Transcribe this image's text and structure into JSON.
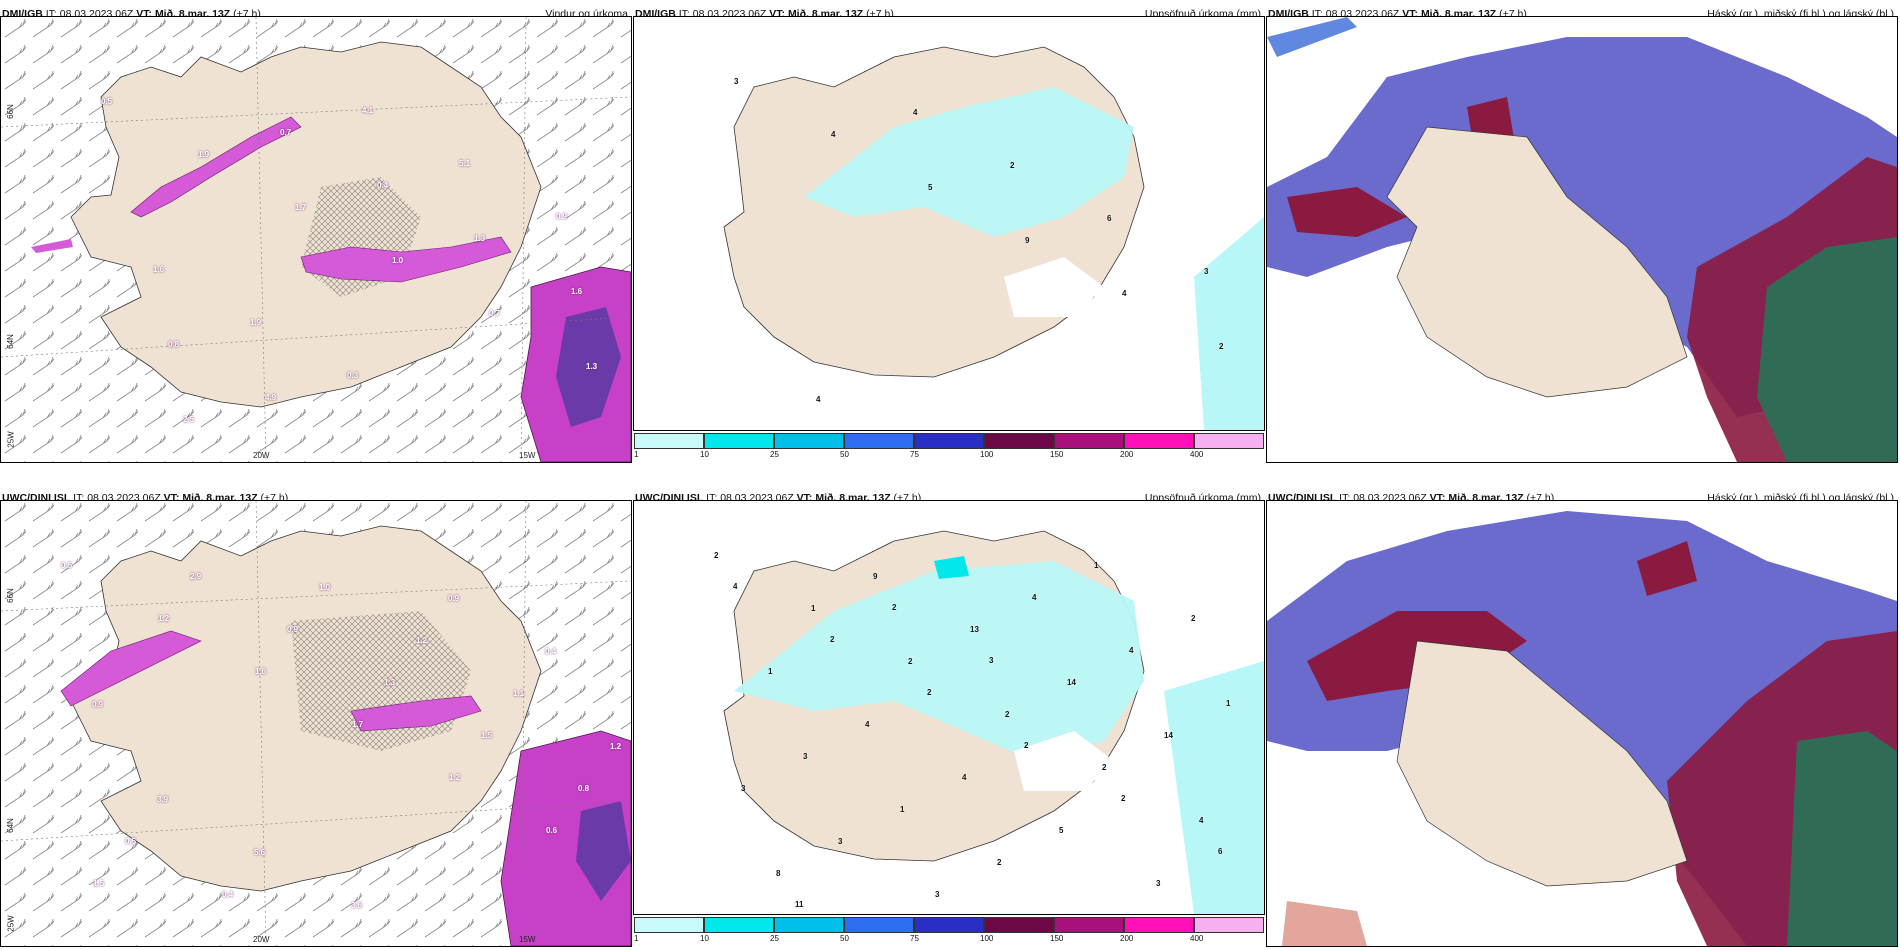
{
  "rows": [
    {
      "model": "DMI/IGB",
      "it_label": "IT:",
      "it": "08.03.2023 06Z",
      "vt_label": "VT:",
      "vt": "Mið. 8.mar. 13Z",
      "lead": "(+7 h)"
    },
    {
      "model": "UWC/DINI ISL",
      "it_label": "IT:",
      "it": "08.03.2023 06Z",
      "vt_label": "VT:",
      "vt": "Mið. 8.mar. 13Z",
      "lead": "(+7 h)"
    }
  ],
  "columns": {
    "wind": {
      "title": "Vindur og úrkoma"
    },
    "precip": {
      "title": "Uppsöfnuð úrkoma (mm)"
    },
    "cloud": {
      "title": "Háský (gr.), miðský (fj.bl.) og lágský (bl.)"
    }
  },
  "axis_labels": {
    "lat66": "66N",
    "lat64": "64N",
    "lat62": "25W",
    "lon20": "20W",
    "lon15": "15W"
  },
  "colorbar": {
    "ticks": [
      "1",
      "10",
      "25",
      "50",
      "75",
      "100",
      "150",
      "200",
      "400"
    ],
    "colors": [
      "#c8fafa",
      "#00e8ec",
      "#00bfe8",
      "#2e6cf0",
      "#2a2fc4",
      "#6b0845",
      "#a8107a",
      "#ff10b8",
      "#f6b0f0"
    ]
  },
  "map_values": {
    "wind_top": [
      "0.5",
      "1.9",
      "1.7",
      "1.0",
      "0.7",
      "1.3",
      "2.5",
      "0.7",
      "0.4",
      "1.3",
      "1.6",
      "0.8",
      "4.9",
      "4.1",
      "5.1",
      "0.9",
      "1.6",
      "1.9",
      "0.3"
    ],
    "wind_bottom": [
      "0.5",
      "1.2",
      "1.6",
      "1.7",
      "1.2",
      "0.6",
      "1.5",
      "2.9",
      "0.9",
      "1.3",
      "1.5",
      "0.8",
      "0.5",
      "0.4",
      "1.0",
      "1.2",
      "1.1",
      "1.2",
      "3.9",
      "5.6",
      "3.6",
      "0.9",
      "0.4",
      "0.9"
    ],
    "precip_top": [
      "3",
      "4",
      "5",
      "9",
      "4",
      "2",
      "4",
      "4",
      "2",
      "6",
      "3"
    ],
    "precip_bottom": [
      "2",
      "1",
      "2",
      "2",
      "2",
      "4",
      "8",
      "9",
      "13",
      "14",
      "14",
      "3",
      "3",
      "3",
      "4",
      "4",
      "1",
      "3",
      "1",
      "2",
      "1",
      "2",
      "1",
      "4",
      "4",
      "5",
      "3",
      "4",
      "2",
      "2",
      "2",
      "2",
      "6",
      "11",
      "2",
      "3"
    ]
  },
  "colors": {
    "land": "#efe2d2",
    "precip_light": "#b8f7f7",
    "cloud_high": "#5a5bc8",
    "cloud_mid": "#8b1a40",
    "cloud_low": "#2f6b55",
    "wind_precip": "#d45ad8"
  }
}
